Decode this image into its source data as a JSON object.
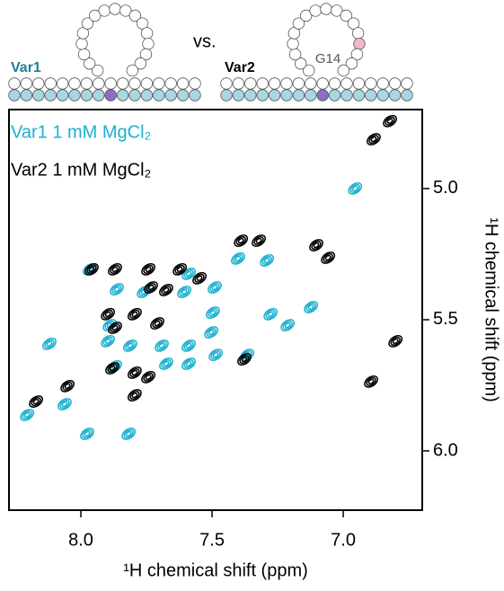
{
  "chart_data": {
    "type": "contour",
    "x_label": "¹H chemical shift (ppm)",
    "y_label": "¹H chemical shift (ppm)",
    "annotations": [
      "Var1",
      "vs.",
      "Var2",
      "G14"
    ],
    "xlim": [
      8.274,
      6.699
    ],
    "ylim": [
      4.699,
      6.226
    ],
    "xticks": [
      {
        "value": 8,
        "label": "8.0"
      },
      7.5,
      {
        "value": 7,
        "label": "7.0"
      }
    ],
    "yticks": [
      {
        "value": 5,
        "label": "5.0"
      },
      5.5,
      {
        "value": 6,
        "label": "6.0"
      }
    ],
    "series": [
      {
        "name": "Var1 1 mM MgCl₂",
        "color": "#1ab0cf",
        "x": [
          6.955,
          7.966,
          7.863,
          7.76,
          7.606,
          7.589,
          7.401,
          7.291,
          7.49,
          7.497,
          7.277,
          7.123,
          7.89,
          8.12,
          7.897,
          7.812,
          7.692,
          7.589,
          7.589,
          7.675,
          7.366,
          7.486,
          7.503,
          8.062,
          8.205,
          7.976,
          7.818,
          7.212,
          7.87
        ],
        "y": [
          5.0,
          5.308,
          5.384,
          5.394,
          5.394,
          5.325,
          5.267,
          5.274,
          5.377,
          5.473,
          5.479,
          5.452,
          5.521,
          5.592,
          5.582,
          5.599,
          5.599,
          5.599,
          5.668,
          5.668,
          5.634,
          5.634,
          5.548,
          5.822,
          5.863,
          5.935,
          5.935,
          5.521,
          5.678
        ]
      },
      {
        "name": "Var2 1 mM MgCl₂",
        "color": "#000000",
        "x": [
          6.822,
          6.884,
          7.39,
          7.322,
          7.103,
          7.959,
          7.87,
          7.743,
          7.733,
          7.675,
          7.548,
          7.897,
          7.795,
          7.87,
          7.709,
          7.377,
          7.88,
          7.795,
          7.743,
          8.171,
          8.051,
          7.795,
          7.058,
          6.801,
          6.894,
          7.623
        ],
        "y": [
          4.743,
          4.812,
          5.199,
          5.199,
          5.216,
          5.308,
          5.308,
          5.308,
          5.377,
          5.387,
          5.342,
          5.479,
          5.479,
          5.531,
          5.514,
          5.651,
          5.685,
          5.702,
          5.719,
          5.812,
          5.753,
          5.788,
          5.264,
          5.582,
          5.736,
          5.308
        ]
      }
    ]
  }
}
